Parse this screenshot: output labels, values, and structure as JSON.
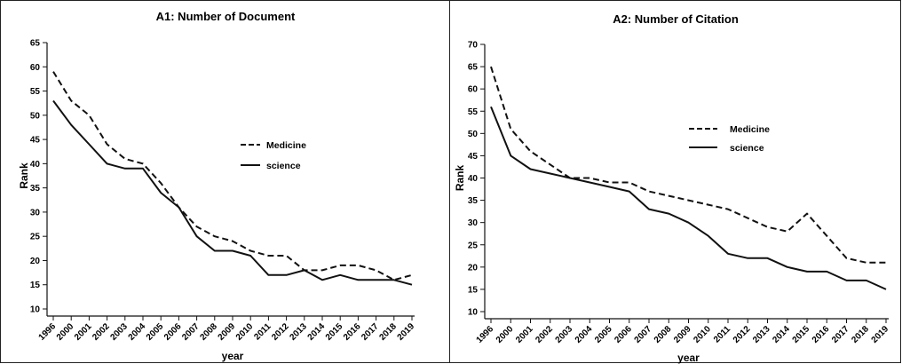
{
  "chart_data": [
    {
      "type": "line",
      "title": "A1: Number of  Document",
      "xlabel": "year",
      "ylabel": "Rank",
      "ylim": [
        10,
        65
      ],
      "yticks": [
        10,
        15,
        20,
        25,
        30,
        35,
        40,
        45,
        50,
        55,
        60,
        65
      ],
      "categories": [
        "1996",
        "2000",
        "2001",
        "2002",
        "2003",
        "2004",
        "2005",
        "2006",
        "2007",
        "2008",
        "2009",
        "2010",
        "2011",
        "2012",
        "2013",
        "2014",
        "2015",
        "2016",
        "2017",
        "2018",
        "2019"
      ],
      "grid": false,
      "legend_position": "right-middle",
      "series": [
        {
          "name": "Medicine",
          "style": "dashed",
          "values": [
            59,
            53,
            50,
            44,
            41,
            40,
            36,
            31,
            27,
            25,
            24,
            22,
            21,
            21,
            18,
            18,
            19,
            19,
            18,
            16,
            17
          ]
        },
        {
          "name": "science",
          "style": "solid",
          "values": [
            53,
            48,
            44,
            40,
            39,
            39,
            34,
            31,
            25,
            22,
            22,
            21,
            17,
            17,
            18,
            16,
            17,
            16,
            16,
            16,
            15
          ]
        }
      ]
    },
    {
      "type": "line",
      "title": "A2: Number of  Citation",
      "xlabel": "year",
      "ylabel": "Rank",
      "ylim": [
        10,
        70
      ],
      "yticks": [
        10,
        15,
        20,
        25,
        30,
        35,
        40,
        45,
        50,
        55,
        60,
        65,
        70
      ],
      "categories": [
        "1996",
        "2000",
        "2001",
        "2002",
        "2003",
        "2004",
        "2005",
        "2006",
        "2007",
        "2008",
        "2009",
        "2010",
        "2011",
        "2012",
        "2013",
        "2014",
        "2015",
        "2016",
        "2017",
        "2018",
        "2019"
      ],
      "grid": false,
      "legend_position": "right-upper",
      "series": [
        {
          "name": "Medicine",
          "style": "dashed",
          "values": [
            65,
            51,
            46,
            43,
            40,
            40,
            39,
            39,
            37,
            36,
            35,
            34,
            33,
            31,
            29,
            28,
            32,
            27,
            22,
            21,
            21
          ]
        },
        {
          "name": "science",
          "style": "solid",
          "values": [
            56,
            45,
            42,
            41,
            40,
            39,
            38,
            37,
            33,
            32,
            30,
            27,
            23,
            22,
            22,
            20,
            19,
            19,
            17,
            17,
            15
          ]
        }
      ]
    }
  ]
}
